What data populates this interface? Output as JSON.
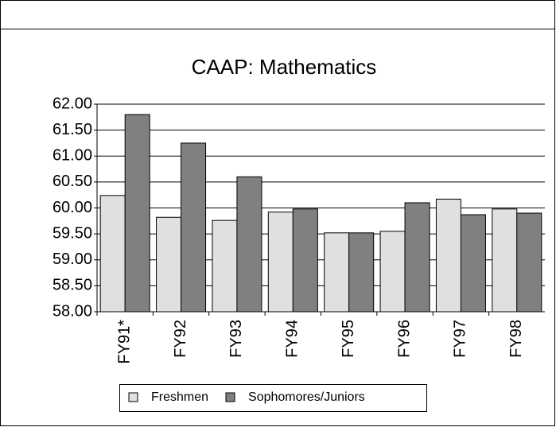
{
  "chart_data": {
    "type": "bar",
    "title": "CAAP: Mathematics",
    "categories": [
      "FY91*",
      "FY92",
      "FY93",
      "FY94",
      "FY95",
      "FY96",
      "FY97",
      "FY98"
    ],
    "series": [
      {
        "name": "Freshmen",
        "color": "#e0e0e0",
        "values": [
          60.24,
          59.82,
          59.76,
          59.92,
          59.52,
          59.55,
          60.17,
          59.98
        ]
      },
      {
        "name": "Sophomores/Juniors",
        "color": "#808080",
        "values": [
          61.8,
          61.25,
          60.6,
          59.98,
          59.52,
          60.1,
          59.87,
          59.9
        ]
      }
    ],
    "ylim": [
      58,
      62
    ],
    "yticks": [
      {
        "value": 58,
        "label": "58.00"
      },
      {
        "value": 58.5,
        "label": "58.50"
      },
      {
        "value": 59,
        "label": "59.00"
      },
      {
        "value": 59.5,
        "label": "59.50"
      },
      {
        "value": 60,
        "label": "60.00"
      },
      {
        "value": 60.5,
        "label": "60.50"
      },
      {
        "value": 61,
        "label": "61.00"
      },
      {
        "value": 61.5,
        "label": "61.50"
      },
      {
        "value": 62,
        "label": "62.00"
      }
    ],
    "grid": true
  }
}
